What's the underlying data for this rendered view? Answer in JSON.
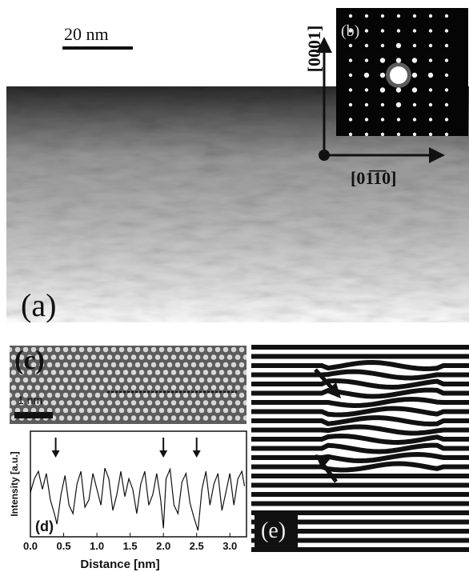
{
  "figure": {
    "scale_bar_a": "20 nm",
    "label_a": "(a)",
    "label_b": "(b)",
    "axis_vertical": "[0001]",
    "axis_horizontal": "[01̅1̅0]",
    "label_c": "(c)",
    "scale_bar_c": "1 nm",
    "label_d": "(d)",
    "label_e": "(e)"
  },
  "chart_data": {
    "type": "line",
    "title": "",
    "xlabel": "Distance [nm]",
    "ylabel": "Intensity [a.u.]",
    "xlim": [
      0.0,
      3.25
    ],
    "ylim": [
      0,
      1
    ],
    "x_ticks": [
      "0.0",
      "0.5",
      "1.0",
      "1.5",
      "2.0",
      "2.5",
      "3.0"
    ],
    "arrows_at_x": [
      0.38,
      2.0,
      2.5
    ],
    "series": [
      {
        "x": [
          0.0,
          0.06,
          0.12,
          0.18,
          0.24,
          0.3,
          0.36,
          0.4,
          0.46,
          0.52,
          0.58,
          0.64,
          0.7,
          0.76,
          0.82,
          0.88,
          0.94,
          1.0,
          1.06,
          1.12,
          1.18,
          1.24,
          1.3,
          1.36,
          1.42,
          1.48,
          1.54,
          1.6,
          1.66,
          1.72,
          1.78,
          1.84,
          1.9,
          1.96,
          2.0,
          2.04,
          2.1,
          2.16,
          2.22,
          2.28,
          2.34,
          2.4,
          2.46,
          2.52,
          2.58,
          2.64,
          2.7,
          2.76,
          2.82,
          2.88,
          2.94,
          3.0,
          3.06,
          3.12,
          3.18,
          3.22
        ],
        "values": [
          0.42,
          0.55,
          0.62,
          0.45,
          0.6,
          0.35,
          0.22,
          0.12,
          0.4,
          0.58,
          0.3,
          0.22,
          0.5,
          0.62,
          0.28,
          0.35,
          0.6,
          0.45,
          0.3,
          0.65,
          0.55,
          0.25,
          0.4,
          0.62,
          0.38,
          0.55,
          0.45,
          0.22,
          0.5,
          0.62,
          0.3,
          0.4,
          0.6,
          0.35,
          0.08,
          0.55,
          0.64,
          0.3,
          0.22,
          0.52,
          0.6,
          0.32,
          0.18,
          0.06,
          0.45,
          0.62,
          0.3,
          0.5,
          0.6,
          0.25,
          0.42,
          0.6,
          0.3,
          0.55,
          0.62,
          0.48
        ]
      }
    ]
  }
}
